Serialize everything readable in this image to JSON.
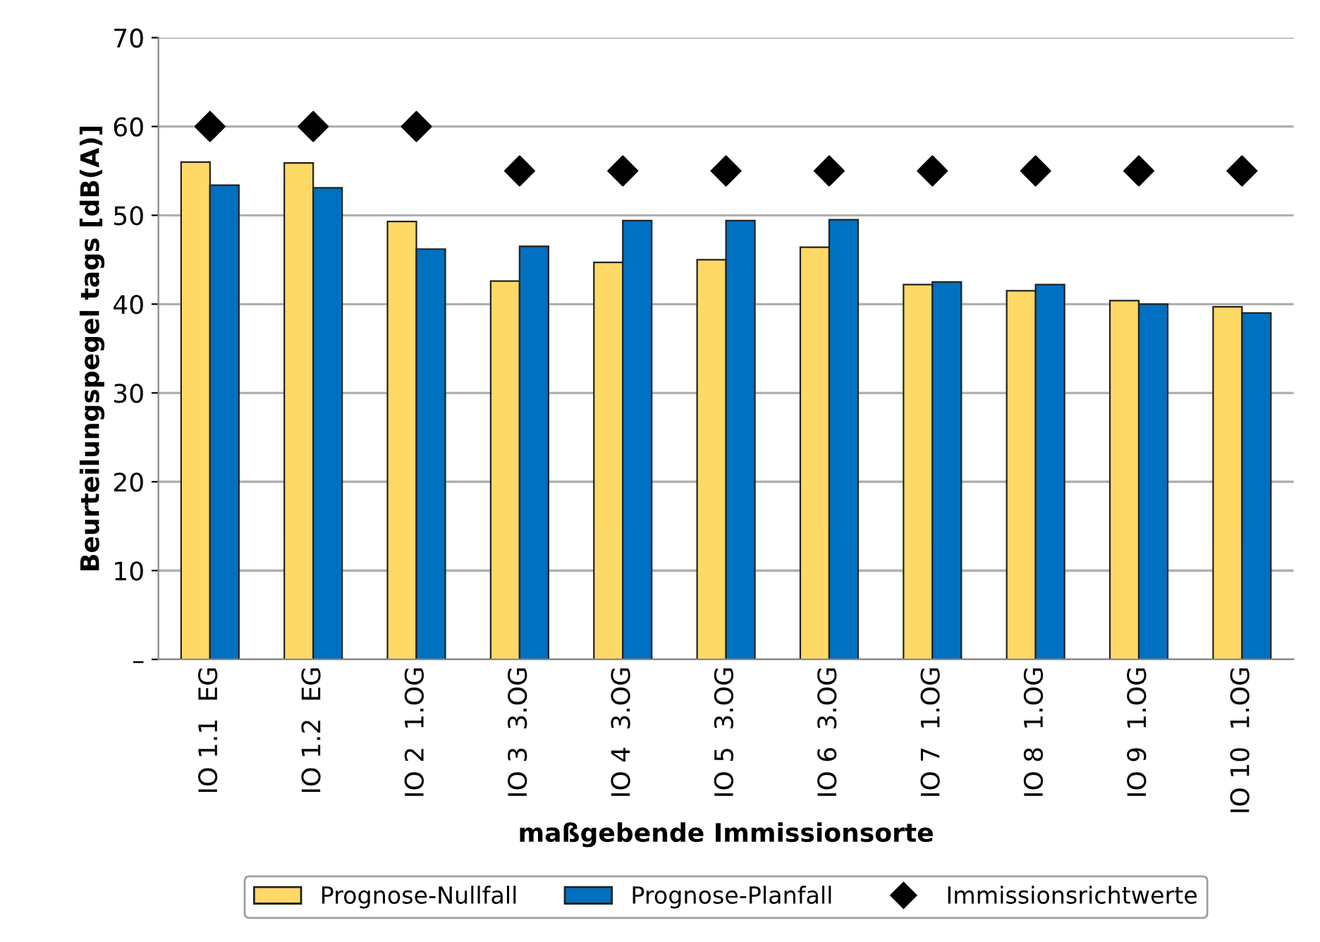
{
  "chart_data": {
    "type": "bar",
    "categories": [
      "IO 1.1  EG",
      "IO 1.2  EG",
      "IO 2  1.OG",
      "IO 3  3.OG",
      "IO 4  3.OG",
      "IO 5  3.OG",
      "IO 6  3.OG",
      "IO 7  1.OG",
      "IO 8  1.OG",
      "IO 9  1.OG",
      "IO 10  1.OG"
    ],
    "series": [
      {
        "name": "Prognose-Nullfall",
        "color": "#ffd966",
        "values": [
          56.0,
          55.9,
          49.3,
          42.6,
          44.7,
          45.0,
          46.4,
          42.2,
          41.5,
          40.4,
          39.7
        ]
      },
      {
        "name": "Prognose-Planfall",
        "color": "#0070c0",
        "values": [
          53.4,
          53.1,
          46.2,
          46.5,
          49.4,
          49.4,
          49.5,
          42.5,
          42.2,
          40.0,
          39.0
        ]
      },
      {
        "name": "Immissionsrichtwerte",
        "type": "scatter",
        "color": "#000000",
        "marker": "diamond",
        "values": [
          60,
          60,
          60,
          55,
          55,
          55,
          55,
          55,
          55,
          55,
          55
        ]
      }
    ],
    "xlabel": "maßgebende Immissionsorte",
    "ylabel": "Beurteilungspegel tags [dB(A)]",
    "ylim": [
      0,
      70
    ],
    "yticks": [
      {
        "value": 0,
        "label": "–"
      },
      10,
      20,
      30,
      40,
      50,
      60,
      70
    ],
    "grid": "y",
    "legend": "bottom"
  }
}
